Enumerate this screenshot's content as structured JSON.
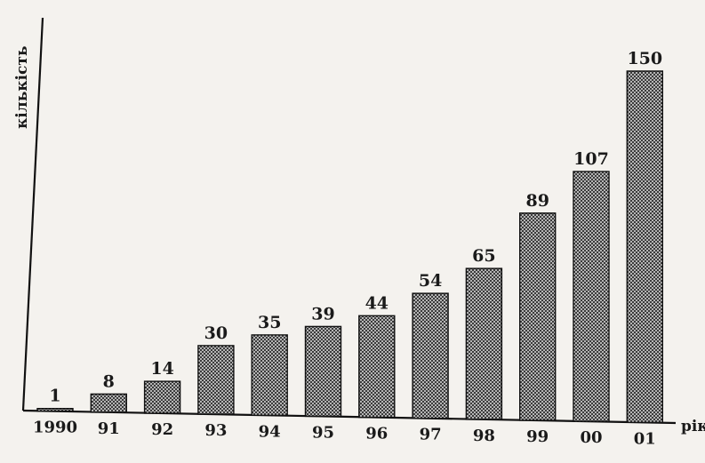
{
  "chart_data": {
    "type": "bar",
    "categories": [
      "1990",
      "91",
      "92",
      "93",
      "94",
      "95",
      "96",
      "97",
      "98",
      "99",
      "00",
      "01"
    ],
    "values": [
      1,
      8,
      14,
      30,
      35,
      39,
      44,
      54,
      65,
      89,
      107,
      150
    ],
    "title": "",
    "xlabel": "рік",
    "ylabel": "кількість",
    "ylim": [
      0,
      160
    ],
    "grid": false,
    "bar_pattern": "crosshatch",
    "colors": {
      "bar_fill": "#d9d9d9",
      "bar_hatch": "#222222",
      "axis": "#111111",
      "text": "#1a1a1a",
      "background": "#f4f2ee"
    }
  }
}
